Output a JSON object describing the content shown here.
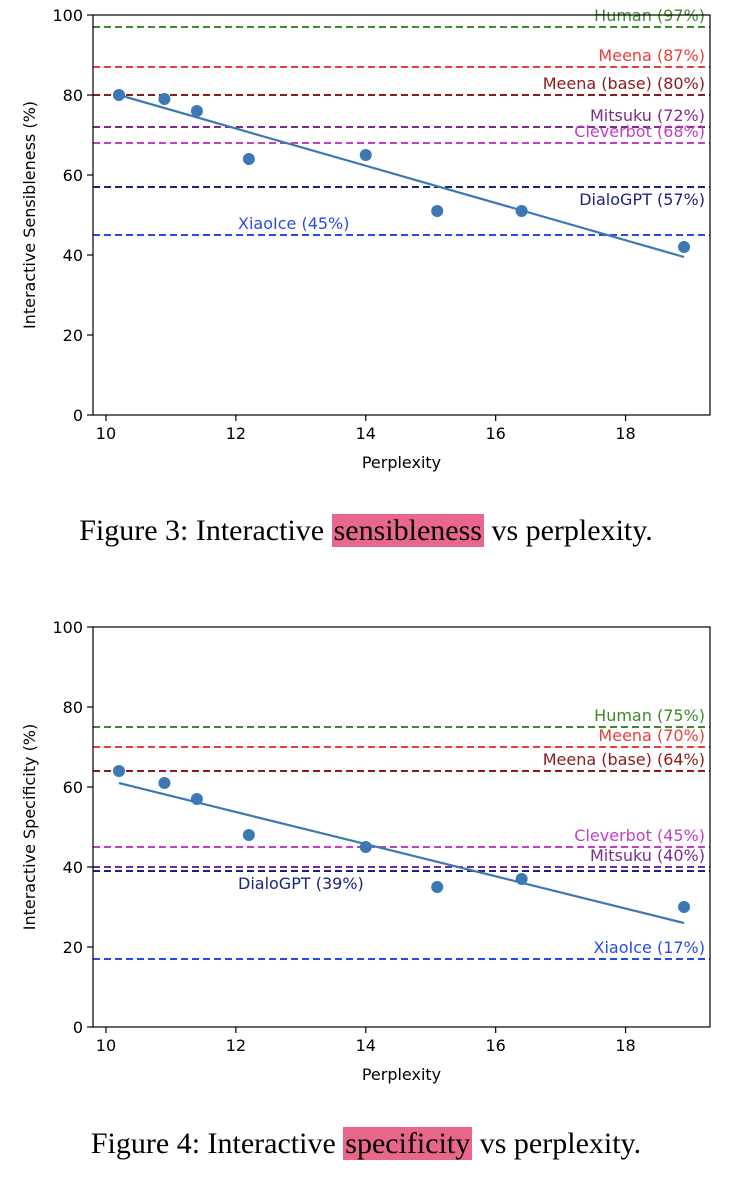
{
  "chart_data": [
    {
      "type": "scatter",
      "title": "",
      "xlabel": "Perplexity",
      "ylabel": "Interactive Sensibleness (%)",
      "xlim": [
        9.8,
        19.3
      ],
      "ylim": [
        0,
        100
      ],
      "xticks": [
        10,
        12,
        14,
        16,
        18
      ],
      "yticks": [
        0,
        20,
        40,
        60,
        80,
        100
      ],
      "points": [
        {
          "x": 10.2,
          "y": 80
        },
        {
          "x": 10.9,
          "y": 79
        },
        {
          "x": 11.4,
          "y": 76
        },
        {
          "x": 12.2,
          "y": 64
        },
        {
          "x": 14.0,
          "y": 65
        },
        {
          "x": 15.1,
          "y": 51
        },
        {
          "x": 16.4,
          "y": 51
        },
        {
          "x": 18.9,
          "y": 42
        }
      ],
      "trend_line": {
        "x1": 10.2,
        "y1": 80,
        "x2": 18.9,
        "y2": 39.5
      },
      "point_color": "#3c78b4",
      "reference_lines": [
        {
          "label": "Human (97%)",
          "value": 97,
          "color": "#3e8a2a",
          "label_align": "right"
        },
        {
          "label": "Meena (87%)",
          "value": 87,
          "color": "#e8403a",
          "label_align": "right"
        },
        {
          "label": "Meena (base) (80%)",
          "value": 80,
          "color": "#8b1a1a",
          "label_align": "right"
        },
        {
          "label": "Mitsuku (72%)",
          "value": 72,
          "color": "#7b2a8e",
          "label_align": "right"
        },
        {
          "label": "Cleverbot (68%)",
          "value": 68,
          "color": "#c13fc4",
          "label_align": "right"
        },
        {
          "label": "DialoGPT (57%)",
          "value": 57,
          "color": "#1a237e",
          "label_align": "right",
          "label_below": true
        },
        {
          "label": "XiaoIce (45%)",
          "value": 45,
          "color": "#2a4ae8",
          "label_align": "left"
        }
      ]
    },
    {
      "type": "scatter",
      "title": "",
      "xlabel": "Perplexity",
      "ylabel": "Interactive Specificity (%)",
      "xlim": [
        9.8,
        19.3
      ],
      "ylim": [
        0,
        100
      ],
      "xticks": [
        10,
        12,
        14,
        16,
        18
      ],
      "yticks": [
        0,
        20,
        40,
        60,
        80,
        100
      ],
      "points": [
        {
          "x": 10.2,
          "y": 64
        },
        {
          "x": 10.9,
          "y": 61
        },
        {
          "x": 11.4,
          "y": 57
        },
        {
          "x": 12.2,
          "y": 48
        },
        {
          "x": 14.0,
          "y": 45
        },
        {
          "x": 15.1,
          "y": 35
        },
        {
          "x": 16.4,
          "y": 37
        },
        {
          "x": 18.9,
          "y": 30
        }
      ],
      "trend_line": {
        "x1": 10.2,
        "y1": 61,
        "x2": 18.9,
        "y2": 26
      },
      "point_color": "#3c78b4",
      "reference_lines": [
        {
          "label": "Human (75%)",
          "value": 75,
          "color": "#3e8a2a",
          "label_align": "right"
        },
        {
          "label": "Meena (70%)",
          "value": 70,
          "color": "#e8403a",
          "label_align": "right"
        },
        {
          "label": "Meena (base) (64%)",
          "value": 64,
          "color": "#8b1a1a",
          "label_align": "right"
        },
        {
          "label": "Cleverbot (45%)",
          "value": 45,
          "color": "#c13fc4",
          "label_align": "right"
        },
        {
          "label": "Mitsuku (40%)",
          "value": 40,
          "color": "#7b2a8e",
          "label_align": "right"
        },
        {
          "label": "DialoGPT (39%)",
          "value": 39,
          "color": "#1a237e",
          "label_align": "left",
          "label_below": true
        },
        {
          "label": "XiaoIce (17%)",
          "value": 17,
          "color": "#2a4ae8",
          "label_align": "right"
        }
      ]
    }
  ],
  "captions": [
    {
      "prefix": "Figure 3: Interactive ",
      "highlight": "sensibleness",
      "suffix": " vs perplexity."
    },
    {
      "prefix": "Figure 4: Interactive ",
      "highlight": "specificity",
      "suffix": " vs perplexity."
    }
  ]
}
